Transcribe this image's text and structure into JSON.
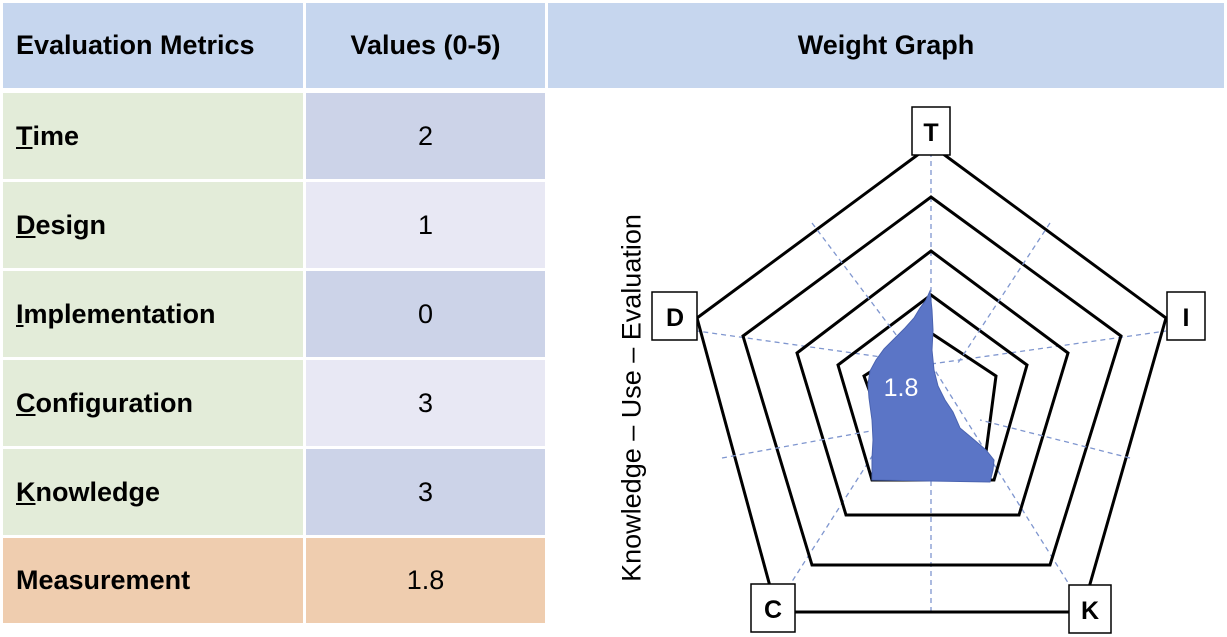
{
  "table": {
    "header_metric": "Evaluation Metrics",
    "header_value": "Values (0-5)",
    "header_graph": "Weight Graph",
    "rows": [
      {
        "initial": "T",
        "rest": "ime",
        "value": "2",
        "color": "#ccd3e8"
      },
      {
        "initial": "D",
        "rest": "esign",
        "value": "1",
        "color": "#e8e8f4"
      },
      {
        "initial": "I",
        "rest": "mplementation",
        "value": "0",
        "color": "#ccd3e8"
      },
      {
        "initial": "C",
        "rest": "onfiguration",
        "value": "3",
        "color": "#e8e8f4"
      },
      {
        "initial": "K",
        "rest": "nowledge",
        "value": "3",
        "color": "#ccd3e8"
      }
    ],
    "measurement_label": "Measurement",
    "measurement_value": "1.8"
  },
  "radar": {
    "side_label": "Knowledge – Use – Evaluation",
    "center_value": "1.8",
    "fill_color": "#5b75c6",
    "vertices": [
      "T",
      "I",
      "K",
      "C",
      "D"
    ]
  },
  "colors": {
    "header_bg": "#c6d6ee",
    "metric_bg": "#e3ecd9",
    "measurement_bg": "#efcdaf",
    "value_dark": "#ccd3e8",
    "value_light": "#e8e8f4"
  }
}
